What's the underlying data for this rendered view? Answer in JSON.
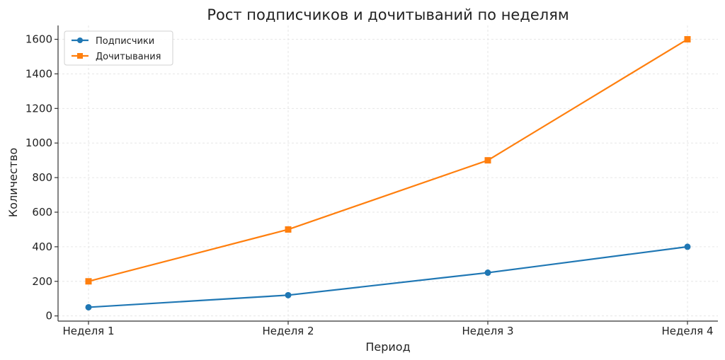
{
  "chart_data": {
    "type": "line",
    "title": "Рост подписчиков и дочитываний по неделям",
    "xlabel": "Период",
    "ylabel": "Количество",
    "categories": [
      "Неделя 1",
      "Неделя 2",
      "Неделя 3",
      "Неделя 4"
    ],
    "series": [
      {
        "name": "Подписчики",
        "values": [
          50,
          120,
          250,
          400
        ],
        "color": "#1f77b4",
        "marker": "circle"
      },
      {
        "name": "Дочитывания",
        "values": [
          200,
          500,
          900,
          1600
        ],
        "color": "#ff7f0e",
        "marker": "square"
      }
    ],
    "ylim": [
      -30,
      1680
    ],
    "yticks": [
      0,
      200,
      400,
      600,
      800,
      1000,
      1200,
      1400,
      1600
    ],
    "grid": true,
    "legend": "top-left"
  }
}
